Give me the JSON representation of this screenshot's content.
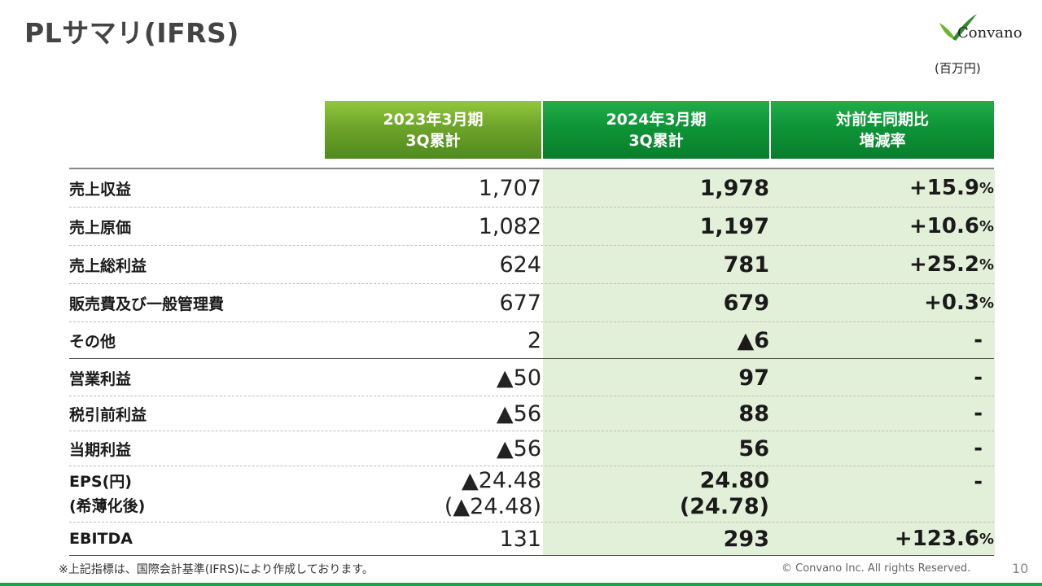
{
  "header": {
    "title": "PLサマリ(IFRS)",
    "logo_text": "Convano",
    "unit": "(百万円)"
  },
  "columns": [
    {
      "line1": "2023年3月期",
      "line2": "3Q累計"
    },
    {
      "line1": "2024年3月期",
      "line2": "3Q累計"
    },
    {
      "line1": "対前年同期比",
      "line2": "増減率"
    }
  ],
  "rows": [
    {
      "label": "売上収益",
      "v1": "1,707",
      "v2": "1,978",
      "v3": "+15.9",
      "v3_unit": "%"
    },
    {
      "label": "売上原価",
      "v1": "1,082",
      "v2": "1,197",
      "v3": "+10.6",
      "v3_unit": "%"
    },
    {
      "label": "売上総利益",
      "v1": "624",
      "v2": "781",
      "v3": "+25.2",
      "v3_unit": "%"
    },
    {
      "label": "販売費及び一般管理費",
      "v1": "677",
      "v2": "679",
      "v3": "+0.3",
      "v3_unit": "%"
    },
    {
      "label": "その他",
      "v1": "2",
      "v2": "▲6",
      "v3": "-",
      "v3_unit": ""
    },
    {
      "label": "営業利益",
      "v1": "▲50",
      "v2": "97",
      "v3": "-",
      "v3_unit": ""
    },
    {
      "label": "税引前利益",
      "v1": "▲56",
      "v2": "88",
      "v3": "-",
      "v3_unit": ""
    },
    {
      "label": "当期利益",
      "v1": "▲56",
      "v2": "56",
      "v3": "-",
      "v3_unit": ""
    },
    {
      "label": "EPS(円)",
      "label2": "(希薄化後)",
      "v1": "▲24.48",
      "v1b": "(▲24.48)",
      "v2": "24.80",
      "v2b": "(24.78)",
      "v3": "-",
      "v3_unit": ""
    },
    {
      "label": "EBITDA",
      "v1": "131",
      "v2": "293",
      "v3": "+123.6",
      "v3_unit": "%"
    }
  ],
  "footer": {
    "note": "※上記指標は、国際会計基準(IFRS)により作成しております。",
    "copyright": "© Convano Inc. All rights Reserved.",
    "page": "10"
  },
  "colors": {
    "header_col1": "#6ea42a",
    "header_col23": "#0d9538",
    "band": "#e3f0d9",
    "bottom_bar": "#1aa34a"
  }
}
